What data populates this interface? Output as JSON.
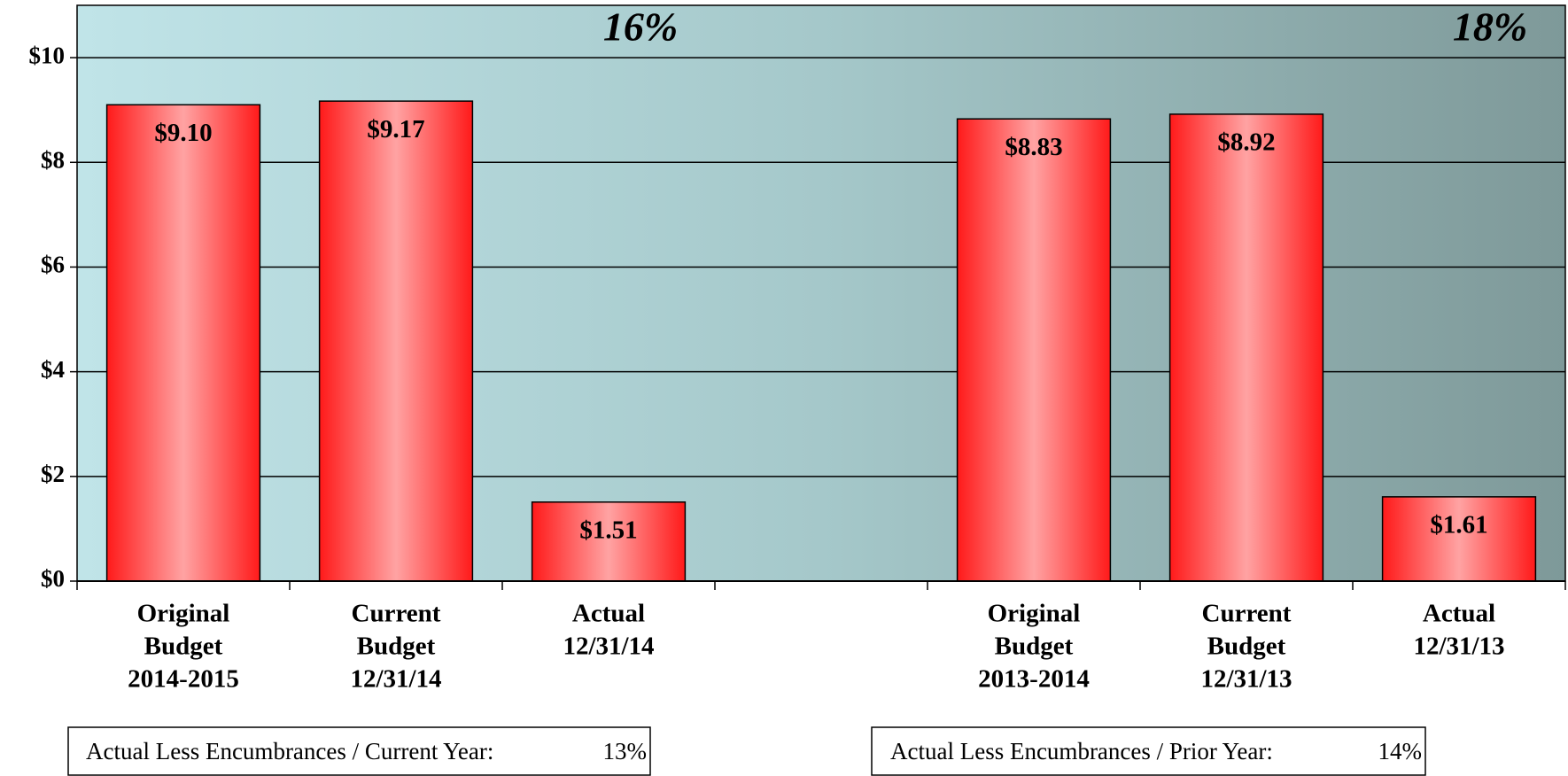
{
  "chart_data": {
    "type": "bar",
    "categories": [
      [
        "Original",
        "Budget",
        "2014-2015"
      ],
      [
        "Current",
        "Budget",
        "12/31/14"
      ],
      [
        "Actual",
        "12/31/14"
      ],
      null,
      [
        "Original",
        "Budget",
        "2013-2014"
      ],
      [
        "Current",
        "Budget",
        "12/31/13"
      ],
      [
        "Actual",
        "12/31/13"
      ]
    ],
    "values": [
      9.1,
      9.17,
      1.51,
      null,
      8.83,
      8.92,
      1.61
    ],
    "value_labels": [
      "$9.10",
      "$9.17",
      "$1.51",
      null,
      "$8.83",
      "$8.92",
      "$1.61"
    ],
    "color": "#ff1a1a",
    "ylim": [
      0,
      11
    ],
    "yticks": [
      {
        "value": 0,
        "label": "$0"
      },
      {
        "value": 2,
        "label": "$2"
      },
      {
        "value": 4,
        "label": "$4"
      },
      {
        "value": 6,
        "label": "$6"
      },
      {
        "value": 8,
        "label": "$8"
      },
      {
        "value": 10,
        "label": "$10"
      }
    ],
    "grid": true,
    "annotations": [
      "16%",
      "18%"
    ],
    "notes": [
      {
        "label": "Actual Less Encumbrances / Current Year:",
        "value": "13%"
      },
      {
        "label": "Actual Less Encumbrances / Prior Year:",
        "value": "14%"
      }
    ]
  }
}
